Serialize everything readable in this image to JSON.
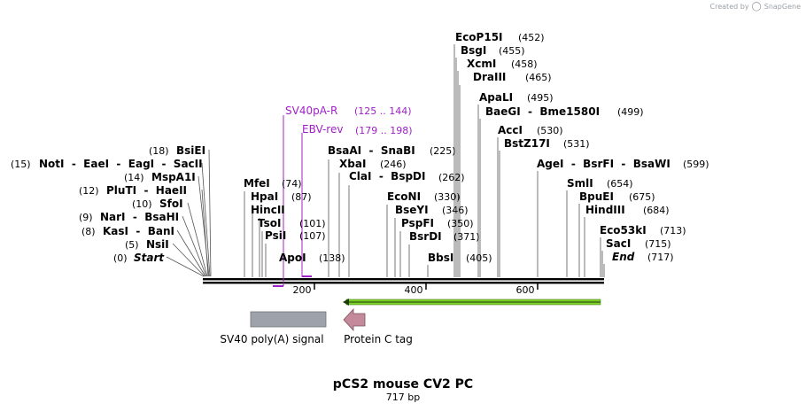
{
  "credit": {
    "prefix": "Created by",
    "brand": "SnapGene"
  },
  "map": {
    "title": "pCS2 mouse CV2 PC",
    "length_label": "717 bp",
    "ticks": [
      "200",
      "400",
      "600"
    ]
  },
  "enzymes_left": [
    {
      "pos": "(0)",
      "name": "Start",
      "italic": true
    },
    {
      "pos": "(5)",
      "name": "NsiI"
    },
    {
      "pos": "(8)",
      "name": "KasI  -  BanI"
    },
    {
      "pos": "(9)",
      "name": "NarI  -  BsaHI"
    },
    {
      "pos": "(10)",
      "name": "SfoI"
    },
    {
      "pos": "(12)",
      "name": "PluTI  -  HaeII"
    },
    {
      "pos": "(14)",
      "name": "MspA1I"
    },
    {
      "pos": "(15)",
      "name": "NotI  -  EaeI  -  EagI  -  SacII"
    },
    {
      "pos": "(18)",
      "name": "BsiEI"
    }
  ],
  "enzymes_mid": [
    {
      "name": "ApoI",
      "pos": "(138)"
    },
    {
      "name": "PsiI",
      "pos": "(107)"
    },
    {
      "name": "TsoI",
      "pos": "(101)"
    },
    {
      "name": "HincII",
      "pos": ""
    },
    {
      "name": "HpaI",
      "pos": "(87)"
    },
    {
      "name": "MfeI",
      "pos": "(74)"
    }
  ],
  "enzymes_right": [
    {
      "name": "BbsI",
      "pos": "(405)"
    },
    {
      "name": "BsrDI",
      "pos": "(371)"
    },
    {
      "name": "PspFI",
      "pos": "(350)"
    },
    {
      "name": "BseYI",
      "pos": "(346)"
    },
    {
      "name": "EcoNI",
      "pos": "(330)"
    },
    {
      "name": "ClaI  -  BspDI",
      "pos": "(262)"
    },
    {
      "name": "XbaI",
      "pos": "(246)"
    },
    {
      "name": "BsaAI  -  SnaBI",
      "pos": "(225)"
    }
  ],
  "enzymes_top": [
    {
      "name": "EcoP15I",
      "pos": "(452)"
    },
    {
      "name": "BsgI",
      "pos": "(455)"
    },
    {
      "name": "XcmI",
      "pos": "(458)"
    },
    {
      "name": "DraIII",
      "pos": "(465)"
    },
    {
      "name": "ApaLI",
      "pos": "(495)"
    },
    {
      "name": "BaeGI  -  Bme1580I",
      "pos": "(499)"
    },
    {
      "name": "AccI",
      "pos": "(530)"
    },
    {
      "name": "BstZ17I",
      "pos": "(531)"
    },
    {
      "name": "AgeI  -  BsrFI  -  BsaWI",
      "pos": "(599)"
    },
    {
      "name": "SmlI",
      "pos": "(654)"
    },
    {
      "name": "BpuEI",
      "pos": "(675)"
    },
    {
      "name": "HindIII",
      "pos": "(684)"
    },
    {
      "name": "Eco53kI",
      "pos": "(713)"
    },
    {
      "name": "SacI",
      "pos": "(715)"
    },
    {
      "name": "End",
      "pos": "(717)",
      "italic": true
    }
  ],
  "primers": [
    {
      "name": "SV40pA-R",
      "pos": "(125 .. 144)"
    },
    {
      "name": "EBV-rev",
      "pos": "(179 .. 198)"
    }
  ],
  "features": [
    {
      "name": "SV40 poly(A) signal",
      "color": "#9ea3ab"
    },
    {
      "name": "Protein C tag",
      "color": "#c48a9c"
    },
    {
      "name": "",
      "color": "#7fcf2a"
    }
  ],
  "colors": {
    "primer": "#a020c8",
    "backbone": "#000000"
  }
}
